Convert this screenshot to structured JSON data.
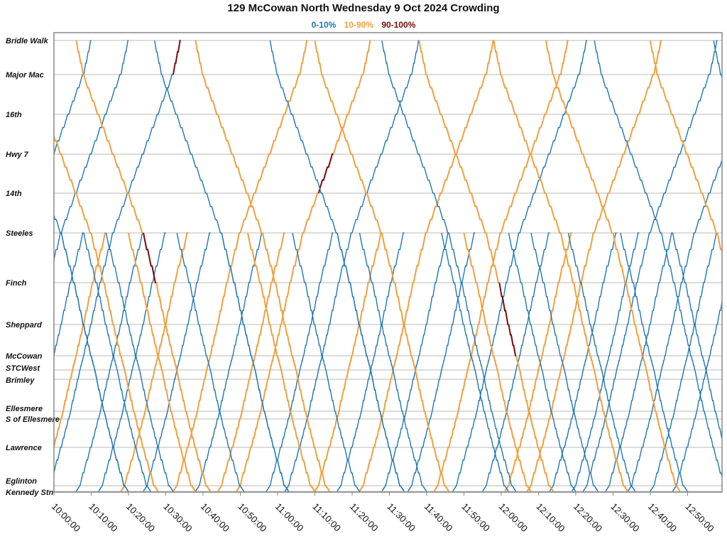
{
  "chart_data": {
    "type": "line",
    "title": "129 McCowan North Wednesday 9 Oct 2024 Crowding",
    "legend": [
      {
        "label": "0-10%",
        "level": "low",
        "color": "#1f77b4"
      },
      {
        "label": "10-90%",
        "level": "mid",
        "color": "#f0a040"
      },
      {
        "label": "90-100%",
        "level": "high",
        "color": "#7a0a0a"
      }
    ],
    "legend_placement": "top-center",
    "grid": "horizontal at each stop",
    "stations": [
      "Bridle Walk",
      "Major Mac",
      "16th",
      "Hwy 7",
      "14th",
      "Steeles",
      "Finch",
      "Sheppard",
      "McCowan",
      "STCWest",
      "Brimley",
      "Ellesmere",
      "S of Ellesmere",
      "Lawrence",
      "Eglinton",
      "Kennedy Stn"
    ],
    "xlim": [
      "10:00:00",
      "12:59:00"
    ],
    "xticks": [
      "10:00:00",
      "10:10:00",
      "10:20:00",
      "10:30:00",
      "10:40:00",
      "10:50:00",
      "11:00:00",
      "11:10:00",
      "11:20:00",
      "11:30:00",
      "11:40:00",
      "11:50:00",
      "12:00:00",
      "12:10:00",
      "12:20:00",
      "12:30:00",
      "12:40:00",
      "12:50:00"
    ],
    "northbound_trips": [
      {
        "depart_kennedy": "09:34",
        "to": "Bridle Walk",
        "level": "low"
      },
      {
        "depart_kennedy": "09:44",
        "to": "Bridle Walk",
        "level": "low"
      },
      {
        "depart_kennedy": "09:50",
        "to": "Steeles",
        "level": "low"
      },
      {
        "depart_kennedy": "09:56",
        "to": "Steeles",
        "level": "mid"
      },
      {
        "depart_kennedy": "09:58",
        "to": "Bridle Walk",
        "level": "low",
        "high_between": [
          "Major Mac",
          "Bridle Walk"
        ]
      },
      {
        "depart_kennedy": "10:06",
        "to": "Steeles",
        "level": "low"
      },
      {
        "depart_kennedy": "10:12",
        "to": "Steeles",
        "level": "low"
      },
      {
        "depart_kennedy": "10:18",
        "to": "Steeles",
        "level": "mid"
      },
      {
        "depart_kennedy": "10:24",
        "to": "Steeles",
        "level": "low"
      },
      {
        "depart_kennedy": "10:32",
        "to": "Bridle Walk",
        "level": "mid"
      },
      {
        "depart_kennedy": "10:38",
        "to": "Steeles",
        "level": "low"
      },
      {
        "depart_kennedy": "10:44",
        "to": "Steeles",
        "level": "mid"
      },
      {
        "depart_kennedy": "10:49",
        "to": "Bridle Walk",
        "level": "mid",
        "high_between": [
          "14th",
          "Hwy 7"
        ]
      },
      {
        "depart_kennedy": "10:57",
        "to": "Steeles",
        "level": "low"
      },
      {
        "depart_kennedy": "11:02",
        "to": "Bridle Walk",
        "level": "low"
      },
      {
        "depart_kennedy": "11:10",
        "to": "Steeles",
        "level": "mid"
      },
      {
        "depart_kennedy": "11:16",
        "to": "Steeles",
        "level": "low"
      },
      {
        "depart_kennedy": "11:22",
        "to": "Bridle Walk",
        "level": "mid"
      },
      {
        "depart_kennedy": "11:28",
        "to": "Steeles",
        "level": "low"
      },
      {
        "depart_kennedy": "11:35",
        "to": "Steeles",
        "level": "low"
      },
      {
        "depart_kennedy": "11:42",
        "to": "Bridle Walk",
        "level": "mid"
      },
      {
        "depart_kennedy": "11:47",
        "to": "Bridle Walk",
        "level": "low"
      },
      {
        "depart_kennedy": "11:55",
        "to": "Steeles",
        "level": "low"
      },
      {
        "depart_kennedy": "12:01",
        "to": "Steeles",
        "level": "mid"
      },
      {
        "depart_kennedy": "12:07",
        "to": "Bridle Walk",
        "level": "mid"
      },
      {
        "depart_kennedy": "12:13",
        "to": "Steeles",
        "level": "low"
      },
      {
        "depart_kennedy": "12:19",
        "to": "Steeles",
        "level": "low"
      },
      {
        "depart_kennedy": "12:22",
        "to": "Bridle Walk",
        "level": "low"
      },
      {
        "depart_kennedy": "12:28",
        "to": "Steeles",
        "level": "low"
      },
      {
        "depart_kennedy": "12:34",
        "to": "Bridle Walk",
        "level": "low"
      },
      {
        "depart_kennedy": "12:40",
        "to": "Steeles",
        "level": "low"
      },
      {
        "depart_kennedy": "12:46",
        "to": "Steeles",
        "level": "low"
      }
    ],
    "southbound_trips": [
      {
        "depart": "09:44",
        "from": "Bridle Walk",
        "level": "low"
      },
      {
        "depart": "09:52",
        "from": "Bridle Walk",
        "level": "mid"
      },
      {
        "depart": "10:02",
        "from": "Steeles",
        "level": "low"
      },
      {
        "depart": "10:06",
        "from": "Bridle Walk",
        "level": "mid",
        "high_between": [
          "Steeles",
          "Finch"
        ]
      },
      {
        "depart": "10:08",
        "from": "Steeles",
        "level": "low"
      },
      {
        "depart": "10:14",
        "from": "Steeles",
        "level": "low"
      },
      {
        "depart": "10:20",
        "from": "Steeles",
        "level": "mid"
      },
      {
        "depart": "10:27",
        "from": "Bridle Walk",
        "level": "low"
      },
      {
        "depart": "10:33",
        "from": "Steeles",
        "level": "low"
      },
      {
        "depart": "10:38",
        "from": "Bridle Walk",
        "level": "mid"
      },
      {
        "depart": "10:45",
        "from": "Steeles",
        "level": "low"
      },
      {
        "depart": "10:52",
        "from": "Steeles",
        "level": "mid"
      },
      {
        "depart": "10:58",
        "from": "Bridle Walk",
        "level": "low"
      },
      {
        "depart": "11:04",
        "from": "Steeles",
        "level": "low"
      },
      {
        "depart": "11:10",
        "from": "Bridle Walk",
        "level": "mid"
      },
      {
        "depart": "11:16",
        "from": "Steeles",
        "level": "low"
      },
      {
        "depart": "11:22",
        "from": "Steeles",
        "level": "low"
      },
      {
        "depart": "11:28",
        "from": "Bridle Walk",
        "level": "low"
      },
      {
        "depart": "11:38",
        "from": "Bridle Walk",
        "level": "mid",
        "high_between": [
          "Finch",
          "McCowan"
        ]
      },
      {
        "depart": "11:44",
        "from": "Steeles",
        "level": "low"
      },
      {
        "depart": "11:50",
        "from": "Steeles",
        "level": "mid"
      },
      {
        "depart": "11:58",
        "from": "Bridle Walk",
        "level": "mid"
      },
      {
        "depart": "12:02",
        "from": "Steeles",
        "level": "low"
      },
      {
        "depart": "12:08",
        "from": "Steeles",
        "level": "low"
      },
      {
        "depart": "12:12",
        "from": "Bridle Walk",
        "level": "mid"
      },
      {
        "depart": "12:18",
        "from": "Steeles",
        "level": "low"
      },
      {
        "depart": "12:25",
        "from": "Bridle Walk",
        "level": "low"
      },
      {
        "depart": "12:32",
        "from": "Steeles",
        "level": "low"
      },
      {
        "depart": "12:40",
        "from": "Bridle Walk",
        "level": "mid"
      },
      {
        "depart": "12:46",
        "from": "Steeles",
        "level": "low"
      },
      {
        "depart": "12:57",
        "from": "Bridle Walk",
        "level": "low"
      }
    ]
  }
}
